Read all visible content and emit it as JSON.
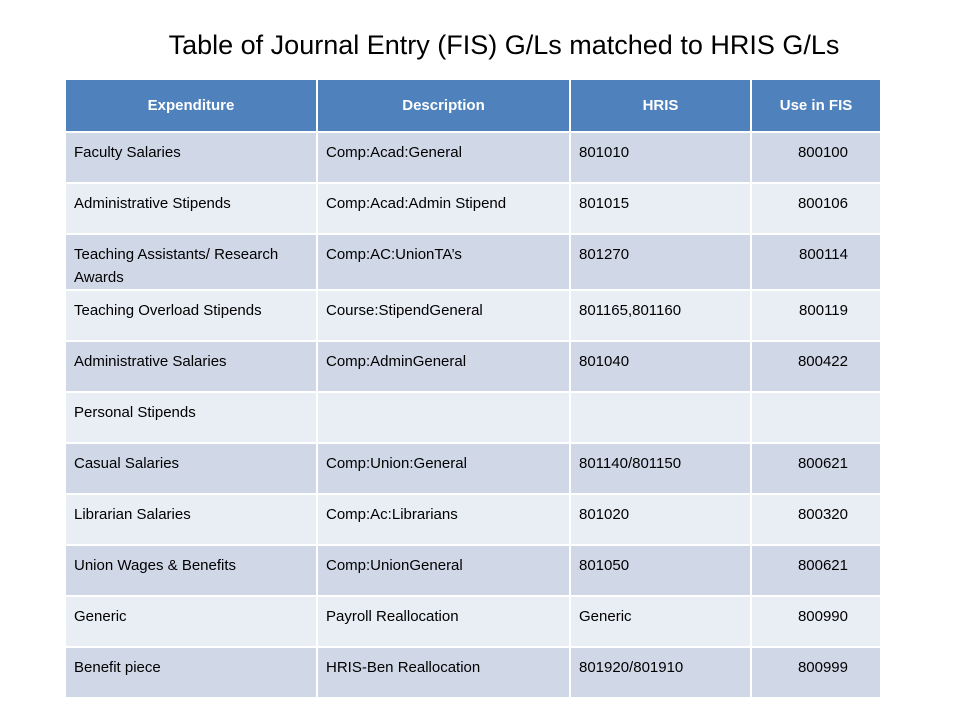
{
  "title": "Table of Journal Entry (FIS) G/Ls matched to HRIS G/Ls",
  "table": {
    "headers": [
      "Expenditure",
      "Description",
      "HRIS",
      "Use  in FIS"
    ],
    "rows": [
      [
        "Faculty Salaries",
        "Comp:Acad:General",
        "801010",
        "800100"
      ],
      [
        "Administrative Stipends",
        "Comp:Acad:Admin Stipend",
        "801015",
        "800106"
      ],
      [
        "Teaching Assistants/ Research Awards",
        "Comp:AC:UnionTA’s",
        "801270",
        "800114"
      ],
      [
        "Teaching Overload Stipends",
        "Course:StipendGeneral",
        "801165,801160",
        "800119"
      ],
      [
        "Administrative Salaries",
        "Comp:AdminGeneral",
        "801040",
        "800422"
      ],
      [
        "Personal Stipends",
        "",
        "",
        ""
      ],
      [
        "Casual Salaries",
        "Comp:Union:General",
        "801140/801150",
        "800621"
      ],
      [
        "Librarian Salaries",
        "Comp:Ac:Librarians",
        "801020",
        "800320"
      ],
      [
        "Union Wages & Benefits",
        "Comp:UnionGeneral",
        "801050",
        "800621"
      ],
      [
        "Generic",
        "Payroll Reallocation",
        "Generic",
        "800990"
      ],
      [
        "Benefit piece",
        "HRIS-Ben  Reallocation",
        "801920/801910",
        "800999"
      ]
    ]
  },
  "colors": {
    "header_bg": "#4f81bd",
    "row_odd_bg": "#d0d8e8",
    "row_even_bg": "#e9edf4"
  }
}
